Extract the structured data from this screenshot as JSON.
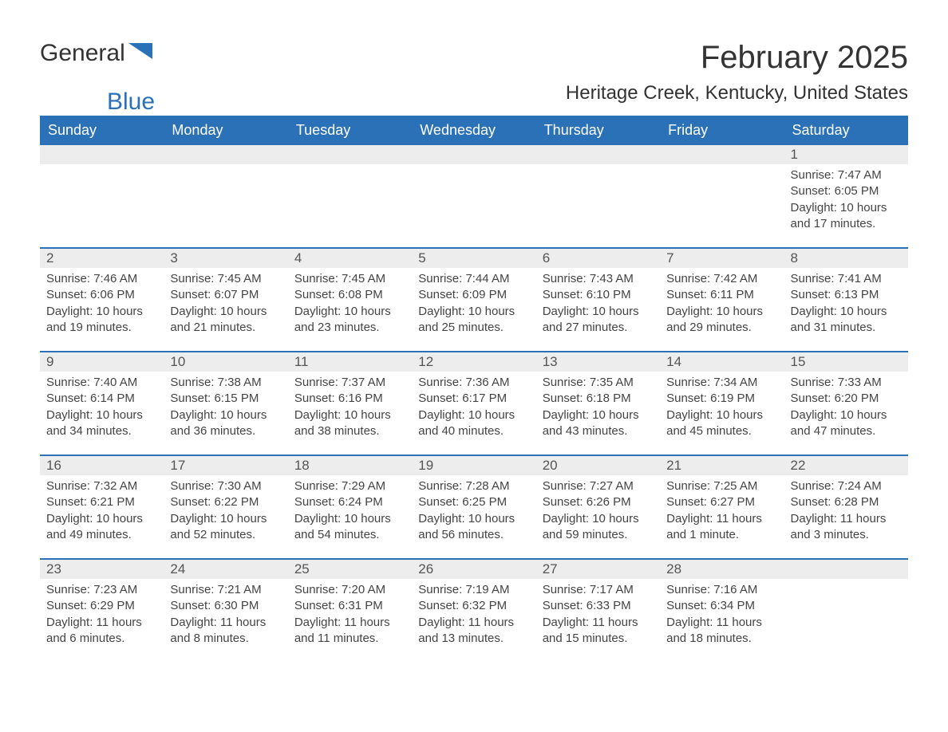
{
  "logo": {
    "part1": "General",
    "part2": "Blue"
  },
  "title": "February 2025",
  "subtitle": "Heritage Creek, Kentucky, United States",
  "colors": {
    "header_bg": "#2a71b8",
    "header_text": "#ffffff",
    "daynum_bg": "#ededed",
    "border": "#2a71b8",
    "body_text": "#444444",
    "logo_blue": "#2a71b8"
  },
  "day_headers": [
    "Sunday",
    "Monday",
    "Tuesday",
    "Wednesday",
    "Thursday",
    "Friday",
    "Saturday"
  ],
  "weeks": [
    [
      null,
      null,
      null,
      null,
      null,
      null,
      {
        "n": "1",
        "sr": "7:47 AM",
        "ss": "6:05 PM",
        "dl": "10 hours and 17 minutes."
      }
    ],
    [
      {
        "n": "2",
        "sr": "7:46 AM",
        "ss": "6:06 PM",
        "dl": "10 hours and 19 minutes."
      },
      {
        "n": "3",
        "sr": "7:45 AM",
        "ss": "6:07 PM",
        "dl": "10 hours and 21 minutes."
      },
      {
        "n": "4",
        "sr": "7:45 AM",
        "ss": "6:08 PM",
        "dl": "10 hours and 23 minutes."
      },
      {
        "n": "5",
        "sr": "7:44 AM",
        "ss": "6:09 PM",
        "dl": "10 hours and 25 minutes."
      },
      {
        "n": "6",
        "sr": "7:43 AM",
        "ss": "6:10 PM",
        "dl": "10 hours and 27 minutes."
      },
      {
        "n": "7",
        "sr": "7:42 AM",
        "ss": "6:11 PM",
        "dl": "10 hours and 29 minutes."
      },
      {
        "n": "8",
        "sr": "7:41 AM",
        "ss": "6:13 PM",
        "dl": "10 hours and 31 minutes."
      }
    ],
    [
      {
        "n": "9",
        "sr": "7:40 AM",
        "ss": "6:14 PM",
        "dl": "10 hours and 34 minutes."
      },
      {
        "n": "10",
        "sr": "7:38 AM",
        "ss": "6:15 PM",
        "dl": "10 hours and 36 minutes."
      },
      {
        "n": "11",
        "sr": "7:37 AM",
        "ss": "6:16 PM",
        "dl": "10 hours and 38 minutes."
      },
      {
        "n": "12",
        "sr": "7:36 AM",
        "ss": "6:17 PM",
        "dl": "10 hours and 40 minutes."
      },
      {
        "n": "13",
        "sr": "7:35 AM",
        "ss": "6:18 PM",
        "dl": "10 hours and 43 minutes."
      },
      {
        "n": "14",
        "sr": "7:34 AM",
        "ss": "6:19 PM",
        "dl": "10 hours and 45 minutes."
      },
      {
        "n": "15",
        "sr": "7:33 AM",
        "ss": "6:20 PM",
        "dl": "10 hours and 47 minutes."
      }
    ],
    [
      {
        "n": "16",
        "sr": "7:32 AM",
        "ss": "6:21 PM",
        "dl": "10 hours and 49 minutes."
      },
      {
        "n": "17",
        "sr": "7:30 AM",
        "ss": "6:22 PM",
        "dl": "10 hours and 52 minutes."
      },
      {
        "n": "18",
        "sr": "7:29 AM",
        "ss": "6:24 PM",
        "dl": "10 hours and 54 minutes."
      },
      {
        "n": "19",
        "sr": "7:28 AM",
        "ss": "6:25 PM",
        "dl": "10 hours and 56 minutes."
      },
      {
        "n": "20",
        "sr": "7:27 AM",
        "ss": "6:26 PM",
        "dl": "10 hours and 59 minutes."
      },
      {
        "n": "21",
        "sr": "7:25 AM",
        "ss": "6:27 PM",
        "dl": "11 hours and 1 minute."
      },
      {
        "n": "22",
        "sr": "7:24 AM",
        "ss": "6:28 PM",
        "dl": "11 hours and 3 minutes."
      }
    ],
    [
      {
        "n": "23",
        "sr": "7:23 AM",
        "ss": "6:29 PM",
        "dl": "11 hours and 6 minutes."
      },
      {
        "n": "24",
        "sr": "7:21 AM",
        "ss": "6:30 PM",
        "dl": "11 hours and 8 minutes."
      },
      {
        "n": "25",
        "sr": "7:20 AM",
        "ss": "6:31 PM",
        "dl": "11 hours and 11 minutes."
      },
      {
        "n": "26",
        "sr": "7:19 AM",
        "ss": "6:32 PM",
        "dl": "11 hours and 13 minutes."
      },
      {
        "n": "27",
        "sr": "7:17 AM",
        "ss": "6:33 PM",
        "dl": "11 hours and 15 minutes."
      },
      {
        "n": "28",
        "sr": "7:16 AM",
        "ss": "6:34 PM",
        "dl": "11 hours and 18 minutes."
      },
      null
    ]
  ],
  "labels": {
    "sunrise": "Sunrise:",
    "sunset": "Sunset:",
    "daylight": "Daylight:"
  }
}
